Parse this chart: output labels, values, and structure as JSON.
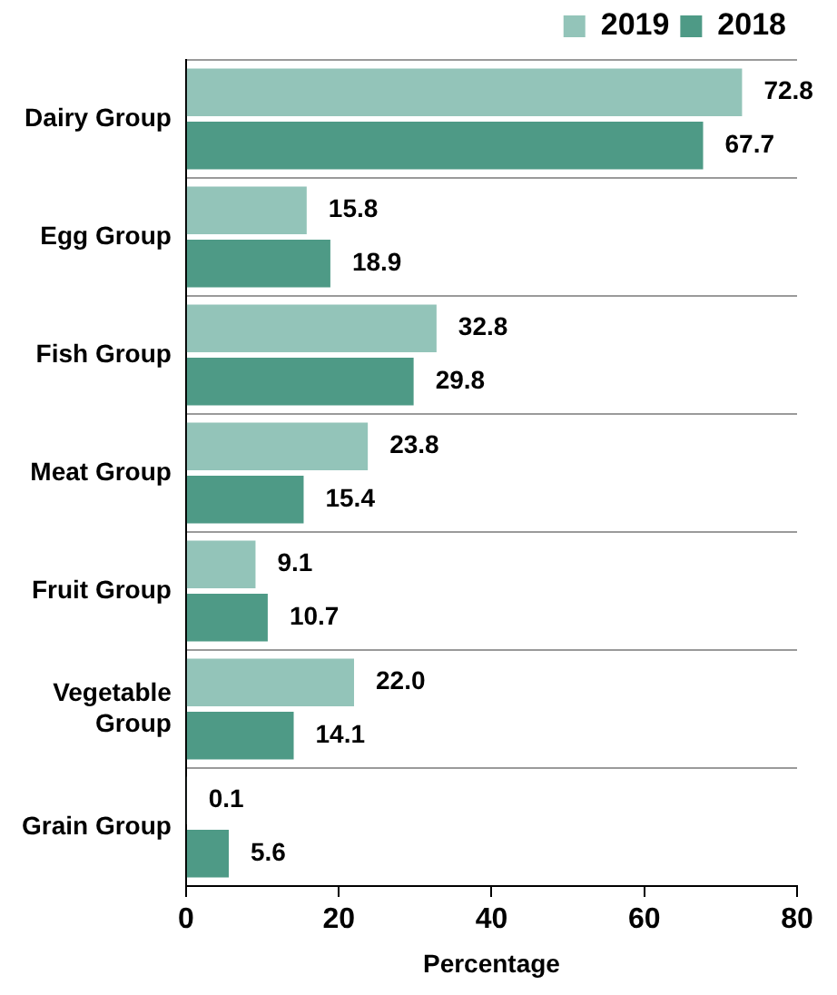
{
  "chart_data": {
    "type": "bar",
    "orientation": "horizontal",
    "xlabel": "Percentage",
    "categories": [
      "Dairy Group",
      "Egg Group",
      "Fish Group",
      "Meat Group",
      "Fruit Group",
      "Vegetable Group",
      "Grain Group"
    ],
    "series": [
      {
        "name": "2019",
        "color": "#93c4b9",
        "values": [
          72.8,
          15.8,
          32.8,
          23.8,
          9.1,
          22.0,
          0.1
        ],
        "value_labels": [
          "72.8",
          "15.8",
          "32.8",
          "23.8",
          "9.1",
          "22.0",
          "0.1"
        ]
      },
      {
        "name": "2018",
        "color": "#4e9a86",
        "values": [
          67.7,
          18.9,
          29.8,
          15.4,
          10.7,
          14.1,
          5.6
        ],
        "value_labels": [
          "67.7",
          "18.9",
          "29.8",
          "15.4",
          "10.7",
          "14.1",
          "5.6"
        ]
      }
    ],
    "xlim": [
      0,
      80
    ],
    "xticks": [
      0,
      20,
      40,
      60,
      80
    ],
    "grid": "y",
    "legend": "top right"
  }
}
